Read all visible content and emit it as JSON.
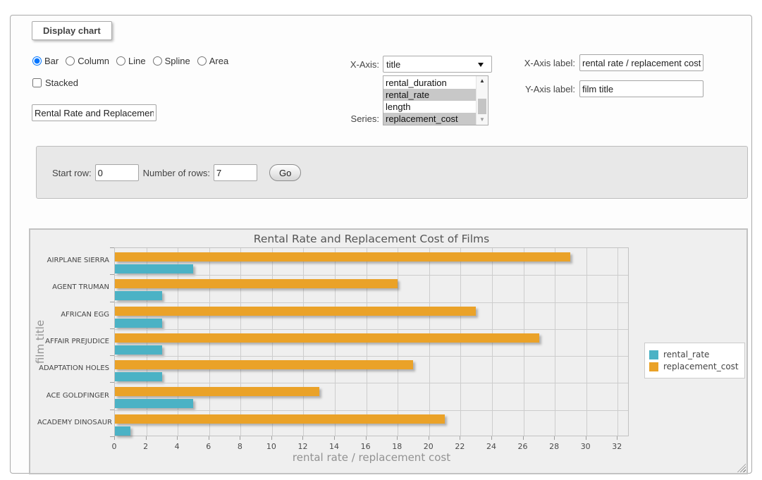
{
  "panel": {
    "legend_title": "Display chart"
  },
  "chart_type": {
    "options": [
      {
        "label": "Bar",
        "selected": true
      },
      {
        "label": "Column",
        "selected": false
      },
      {
        "label": "Line",
        "selected": false
      },
      {
        "label": "Spline",
        "selected": false
      },
      {
        "label": "Area",
        "selected": false
      }
    ],
    "stacked_label": "Stacked",
    "title_value": "Rental Rate and Replacement Cost of Films"
  },
  "axis_controls": {
    "x_axis_label_text": "X-Axis:",
    "x_axis_selected": "title",
    "series_label_text": "Series:",
    "series_options": [
      {
        "label": "rental_duration",
        "selected": false
      },
      {
        "label": "rental_rate",
        "selected": true
      },
      {
        "label": "length",
        "selected": false
      },
      {
        "label": "replacement_cost",
        "selected": true
      }
    ],
    "x_axis_caption_label": "X-Axis label:",
    "x_axis_caption_value": "rental rate / replacement cost",
    "y_axis_caption_label": "Y-Axis label:",
    "y_axis_caption_value": "film title"
  },
  "rows_form": {
    "start_row_label": "Start row:",
    "start_row_value": "0",
    "num_rows_label": "Number of rows:",
    "num_rows_value": "7",
    "go_label": "Go"
  },
  "chart_data": {
    "type": "bar",
    "orientation": "horizontal",
    "title": "Rental Rate and Replacement Cost of Films",
    "categories": [
      "AIRPLANE SIERRA",
      "AGENT TRUMAN",
      "AFRICAN EGG",
      "AFFAIR PREJUDICE",
      "ADAPTATION HOLES",
      "ACE GOLDFINGER",
      "ACADEMY DINOSAUR"
    ],
    "series": [
      {
        "name": "rental_rate",
        "color": "#4bb2c5",
        "values": [
          4.99,
          2.99,
          2.99,
          2.99,
          2.99,
          4.99,
          0.99
        ]
      },
      {
        "name": "replacement_cost",
        "color": "#eaa228",
        "values": [
          28.99,
          17.99,
          22.99,
          26.99,
          18.99,
          12.99,
          20.99
        ]
      }
    ],
    "xlabel": "rental rate / replacement cost",
    "ylabel": "film title",
    "xlim": [
      0,
      32.75
    ],
    "xtick_step": 2,
    "xtick_max": 32,
    "grid": true,
    "legend_position": "right"
  }
}
